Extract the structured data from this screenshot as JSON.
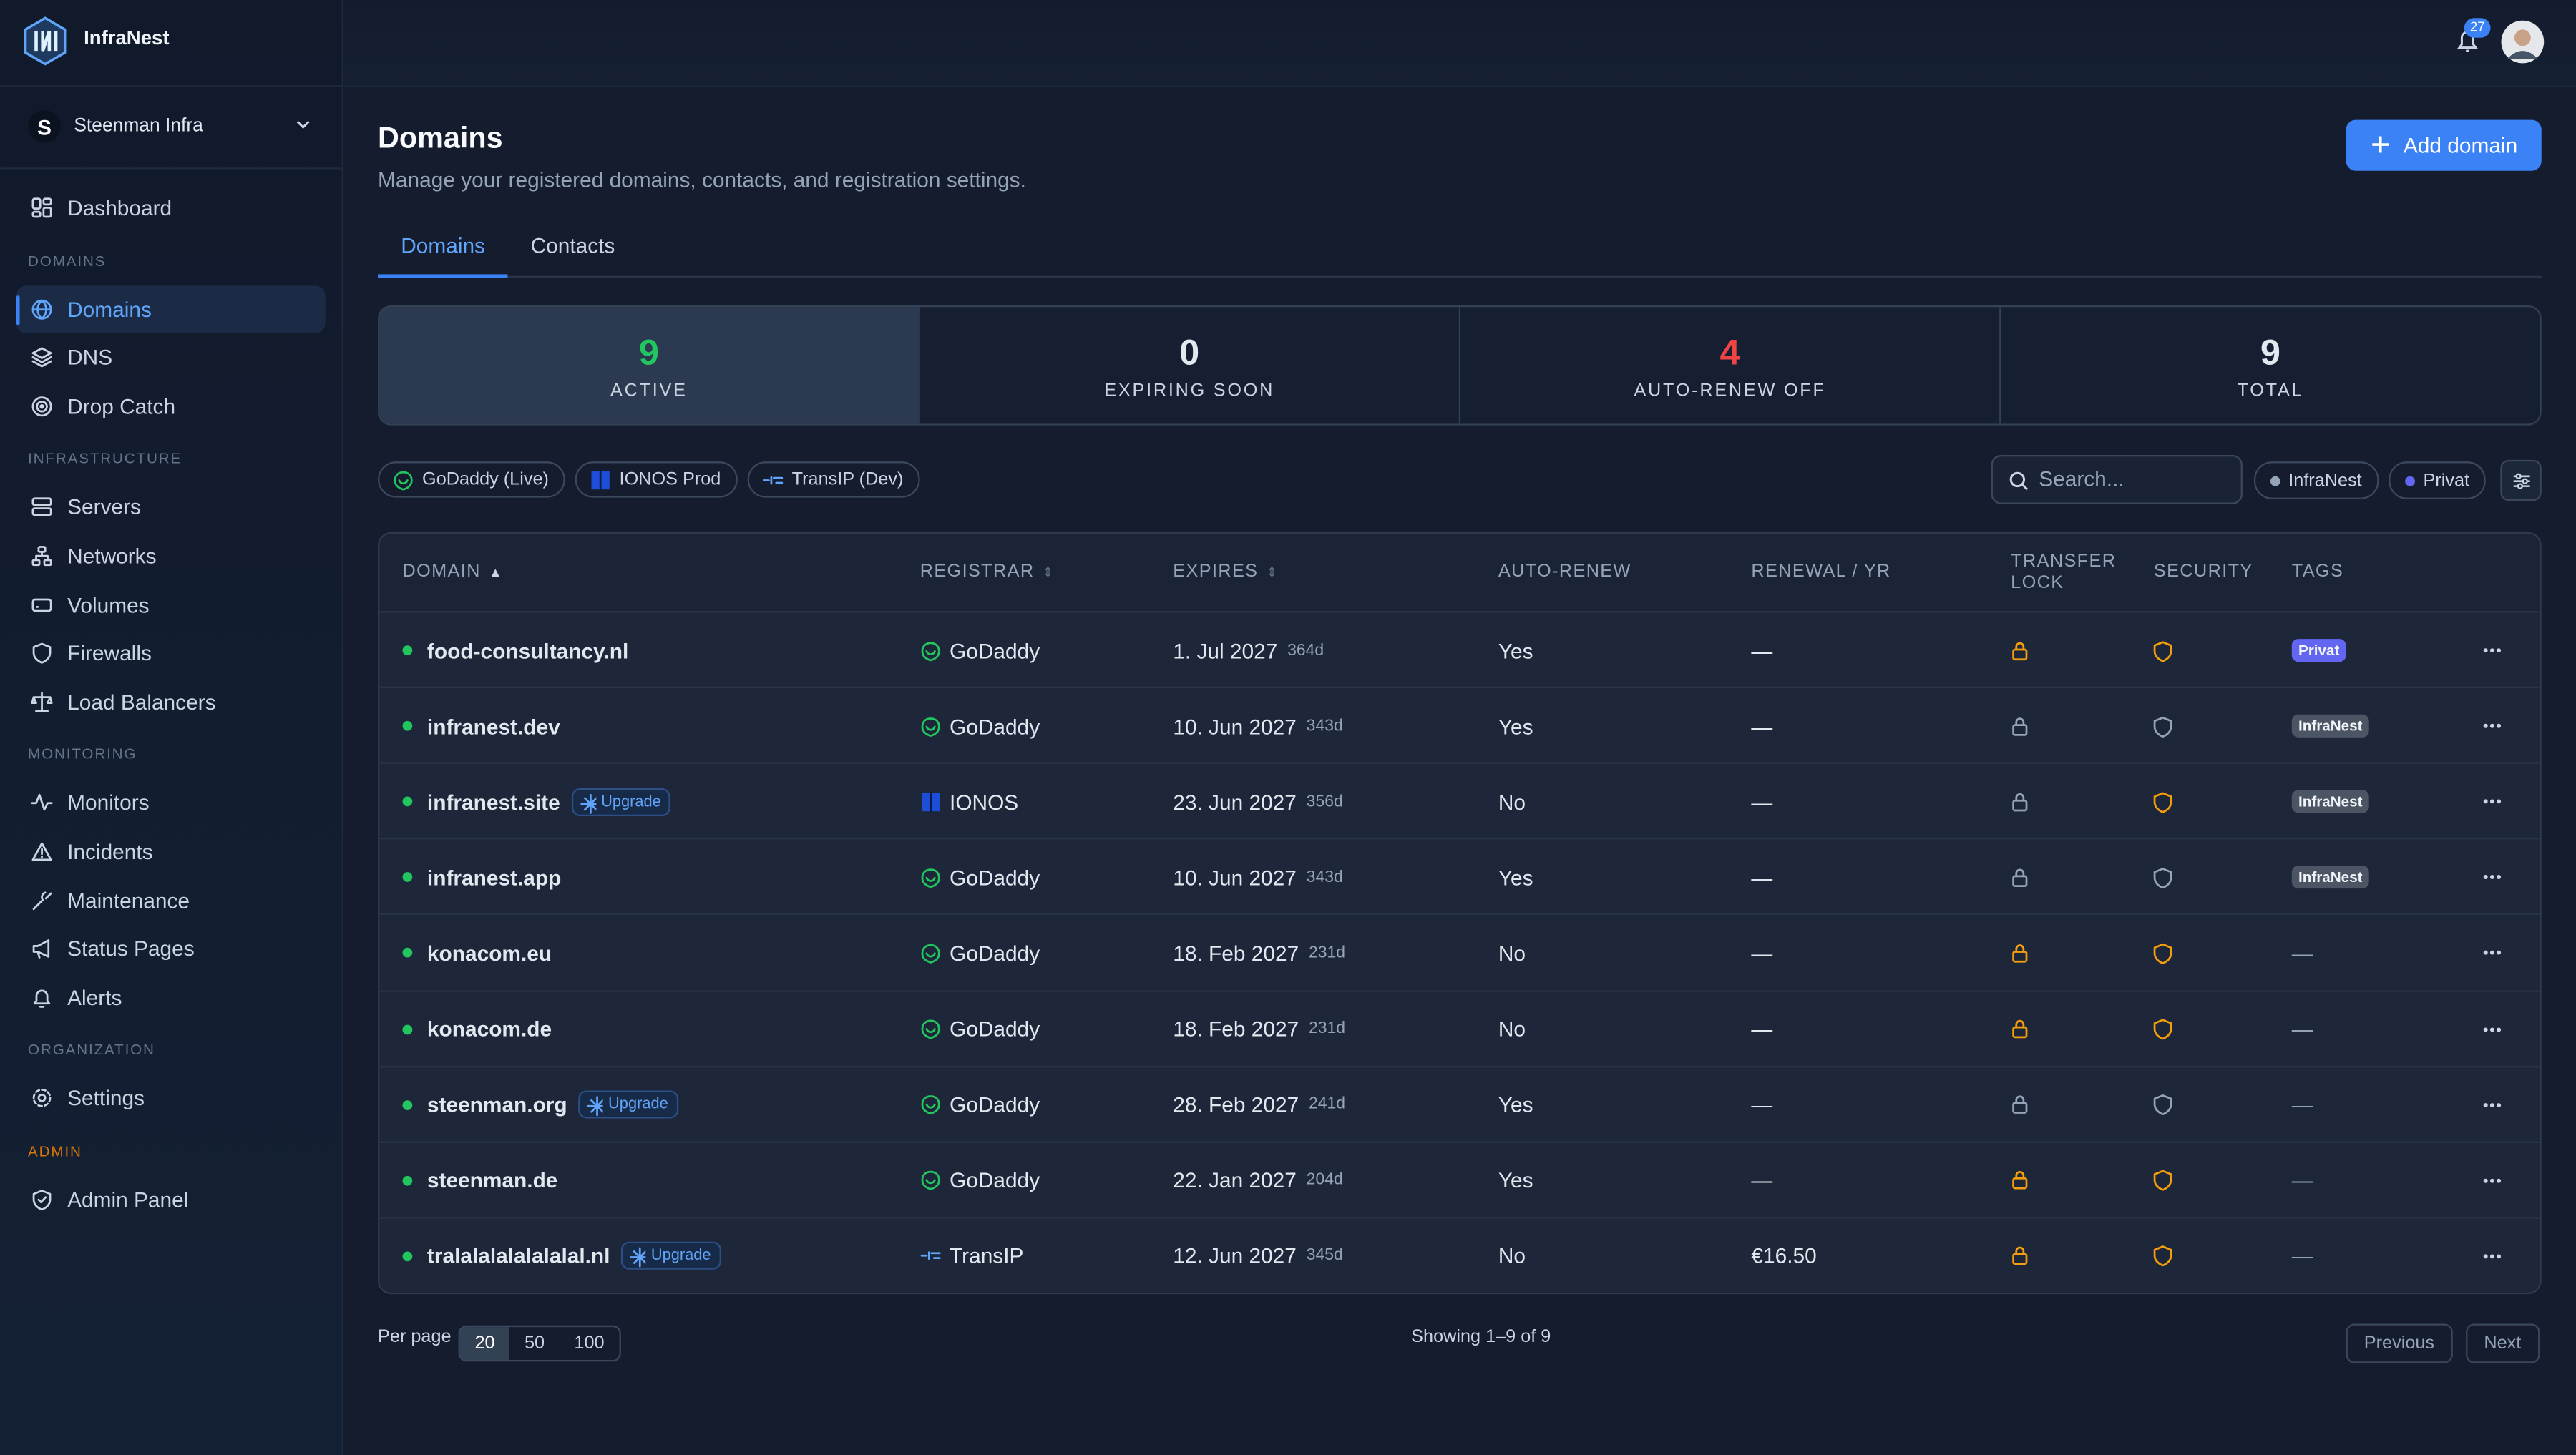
{
  "app": {
    "name": "InfraNest",
    "notifications": "27",
    "org": "Steenman Infra"
  },
  "nav": {
    "top": [
      "Dashboard"
    ],
    "sections": [
      {
        "title": "DOMAINS",
        "items": [
          "Domains",
          "DNS",
          "Drop Catch"
        ]
      },
      {
        "title": "INFRASTRUCTURE",
        "items": [
          "Servers",
          "Networks",
          "Volumes",
          "Firewalls",
          "Load Balancers"
        ]
      },
      {
        "title": "MONITORING",
        "items": [
          "Monitors",
          "Incidents",
          "Maintenance",
          "Status Pages",
          "Alerts"
        ]
      },
      {
        "title": "ORGANIZATION",
        "items": [
          "Settings"
        ]
      },
      {
        "title": "ADMIN",
        "items": [
          "Admin Panel"
        ]
      }
    ],
    "active": "Domains"
  },
  "header": {
    "title": "Domains",
    "subtitle": "Manage your registered domains, contacts, and registration settings.",
    "button": "Add domain"
  },
  "tabs": [
    "Domains",
    "Contacts"
  ],
  "stats": [
    {
      "value": 9,
      "label": "ACTIVE",
      "color": "#22c55e"
    },
    {
      "value": 0,
      "label": "EXPIRING SOON",
      "color": "#e2e8f0"
    },
    {
      "value": 4,
      "label": "AUTO-RENEW OFF",
      "color": "#ef4444"
    },
    {
      "value": 9,
      "label": "TOTAL",
      "color": "#e2e8f0"
    }
  ],
  "providers": [
    "GoDaddy (Live)",
    "IONOS Prod",
    "TransIP (Dev)"
  ],
  "search_placeholder": "Search...",
  "tag_filters": [
    {
      "name": "InfraNest",
      "color": "#94a3b8"
    },
    {
      "name": "Privat",
      "color": "#6366f1"
    }
  ],
  "table": {
    "headers": [
      "DOMAIN",
      "REGISTRAR",
      "EXPIRES",
      "AUTO-RENEW",
      "RENEWAL / YR",
      "TRANSFER LOCK",
      "SECURITY",
      "TAGS"
    ],
    "rows": [
      {
        "domain": "food-consultancy.nl",
        "badge": null,
        "registrar": "GoDaddy",
        "expires": "1. Jul 2027",
        "days": "364d",
        "auto_renew": "Yes",
        "renewal": "—",
        "transfer_lock": true,
        "security": true,
        "tag": "Privat"
      },
      {
        "domain": "infranest.dev",
        "badge": null,
        "registrar": "GoDaddy",
        "expires": "10. Jun 2027",
        "days": "343d",
        "auto_renew": "Yes",
        "renewal": "—",
        "transfer_lock": false,
        "security": false,
        "tag": "InfraNest"
      },
      {
        "domain": "infranest.site",
        "badge": "Upgrade",
        "registrar": "IONOS",
        "expires": "23. Jun 2027",
        "days": "356d",
        "auto_renew": "No",
        "renewal": "—",
        "transfer_lock": false,
        "security": true,
        "tag": "InfraNest"
      },
      {
        "domain": "infranest.app",
        "badge": null,
        "registrar": "GoDaddy",
        "expires": "10. Jun 2027",
        "days": "343d",
        "auto_renew": "Yes",
        "renewal": "—",
        "transfer_lock": false,
        "security": false,
        "tag": "InfraNest"
      },
      {
        "domain": "konacom.eu",
        "badge": null,
        "registrar": "GoDaddy",
        "expires": "18. Feb 2027",
        "days": "231d",
        "auto_renew": "No",
        "renewal": "—",
        "transfer_lock": true,
        "security": true,
        "tag": "—"
      },
      {
        "domain": "konacom.de",
        "badge": null,
        "registrar": "GoDaddy",
        "expires": "18. Feb 2027",
        "days": "231d",
        "auto_renew": "No",
        "renewal": "—",
        "transfer_lock": true,
        "security": true,
        "tag": "—"
      },
      {
        "domain": "steenman.org",
        "badge": "Upgrade",
        "registrar": "GoDaddy",
        "expires": "28. Feb 2027",
        "days": "241d",
        "auto_renew": "Yes",
        "renewal": "—",
        "transfer_lock": false,
        "security": false,
        "tag": "—"
      },
      {
        "domain": "steenman.de",
        "badge": null,
        "registrar": "GoDaddy",
        "expires": "22. Jan 2027",
        "days": "204d",
        "auto_renew": "Yes",
        "renewal": "—",
        "transfer_lock": true,
        "security": true,
        "tag": "—"
      },
      {
        "domain": "tralalalalalalalal.nl",
        "badge": "Upgrade",
        "registrar": "TransIP",
        "expires": "12. Jun 2027",
        "days": "345d",
        "auto_renew": "No",
        "renewal": "€16.50",
        "transfer_lock": true,
        "security": true,
        "tag": "—"
      }
    ]
  },
  "footer": {
    "per_page_label": "Per page",
    "per_page_options": [
      20,
      50,
      100
    ],
    "showing": "Showing 1–9 of 9",
    "previous": "Previous",
    "next": "Next"
  }
}
